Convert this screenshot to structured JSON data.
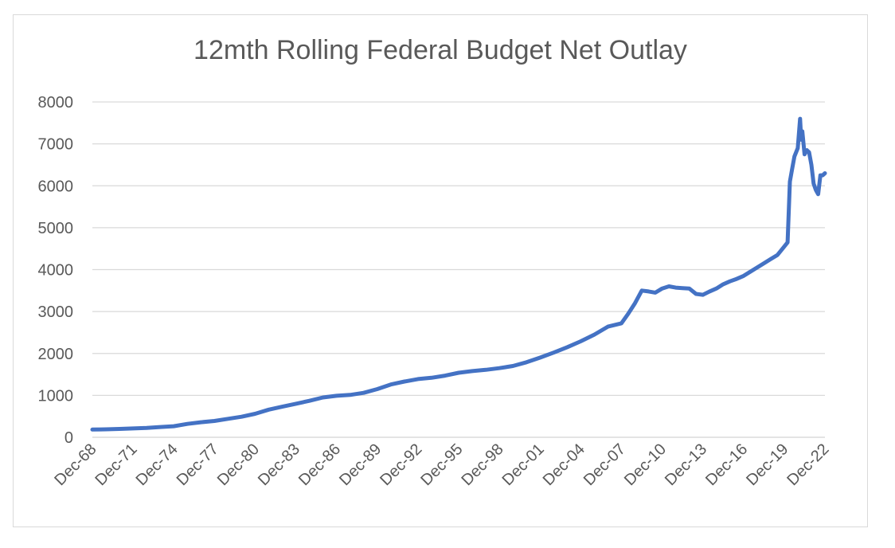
{
  "chart_data": {
    "type": "line",
    "title": "12mth Rolling Federal Budget Net Outlay",
    "xlabel": "",
    "ylabel": "",
    "ylim": [
      0,
      8000
    ],
    "y_ticks": [
      "0",
      "1000",
      "2000",
      "3000",
      "4000",
      "5000",
      "6000",
      "7000",
      "8000"
    ],
    "x_ticks": [
      "Dec-68",
      "Dec-71",
      "Dec-74",
      "Dec-77",
      "Dec-80",
      "Dec-83",
      "Dec-86",
      "Dec-89",
      "Dec-92",
      "Dec-95",
      "Dec-98",
      "Dec-01",
      "Dec-04",
      "Dec-07",
      "Dec-10",
      "Dec-13",
      "Dec-16",
      "Dec-19",
      "Dec-22"
    ],
    "grid": true,
    "legend": "none",
    "line_color": "#4472c4",
    "series": [
      {
        "x": [
          "1968-12",
          "1969-12",
          "1970-12",
          "1971-12",
          "1972-12",
          "1973-12",
          "1974-12",
          "1975-12",
          "1976-12",
          "1977-12",
          "1978-12",
          "1979-12",
          "1980-12",
          "1981-12",
          "1982-12",
          "1983-12",
          "1984-12",
          "1985-12",
          "1986-12",
          "1987-12",
          "1988-12",
          "1989-12",
          "1990-12",
          "1991-12",
          "1992-12",
          "1993-12",
          "1994-12",
          "1995-12",
          "1996-12",
          "1997-12",
          "1998-12",
          "1999-12",
          "2000-12",
          "2001-12",
          "2002-12",
          "2003-12",
          "2004-12",
          "2005-12",
          "2006-12",
          "2007-12",
          "2008-06",
          "2008-12",
          "2009-06",
          "2009-12",
          "2010-06",
          "2010-12",
          "2011-06",
          "2011-12",
          "2012-06",
          "2012-12",
          "2013-06",
          "2013-12",
          "2014-06",
          "2014-12",
          "2015-06",
          "2015-12",
          "2016-06",
          "2016-12",
          "2017-06",
          "2017-12",
          "2018-06",
          "2018-12",
          "2019-06",
          "2019-12",
          "2020-03",
          "2020-05",
          "2020-07",
          "2020-09",
          "2020-12",
          "2021-02",
          "2021-03",
          "2021-04",
          "2021-06",
          "2021-08",
          "2021-10",
          "2021-12",
          "2022-02",
          "2022-04",
          "2022-06",
          "2022-08",
          "2022-10",
          "2022-12"
        ],
        "values": [
          185,
          190,
          200,
          210,
          225,
          245,
          265,
          320,
          360,
          390,
          440,
          490,
          560,
          660,
          730,
          800,
          870,
          950,
          990,
          1010,
          1060,
          1150,
          1260,
          1330,
          1390,
          1420,
          1470,
          1540,
          1580,
          1610,
          1650,
          1700,
          1790,
          1900,
          2020,
          2150,
          2290,
          2450,
          2640,
          2720,
          2950,
          3200,
          3500,
          3480,
          3450,
          3550,
          3600,
          3570,
          3560,
          3550,
          3420,
          3400,
          3480,
          3550,
          3650,
          3720,
          3780,
          3850,
          3950,
          4050,
          4150,
          4250,
          4350,
          4550,
          4650,
          6100,
          6400,
          6700,
          6900,
          7600,
          7100,
          7300,
          6750,
          6850,
          6800,
          6500,
          6050,
          5900,
          5800,
          6250,
          6250,
          6300
        ]
      }
    ]
  }
}
